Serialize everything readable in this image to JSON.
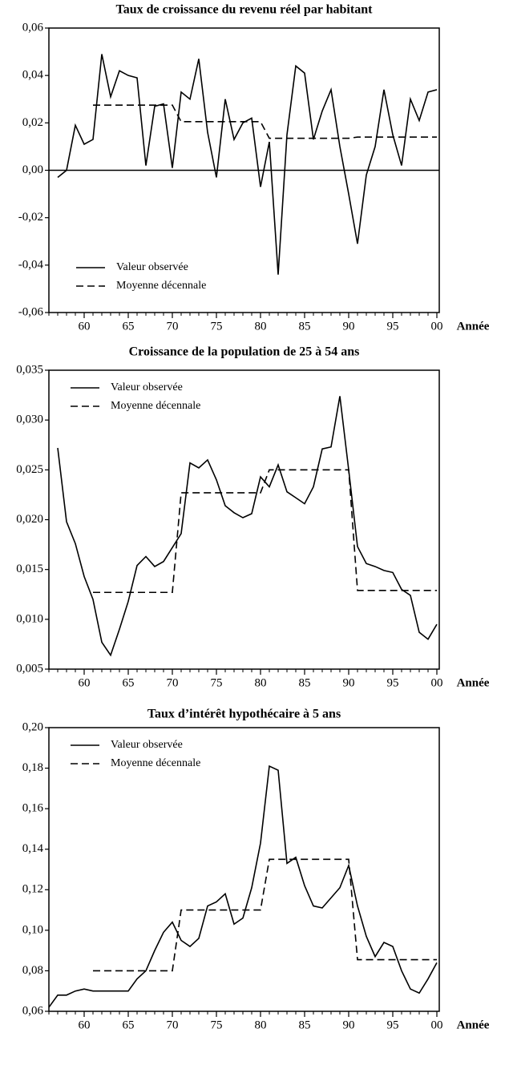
{
  "chart_data": [
    {
      "type": "line",
      "title": "Taux de croissance du revenu réel par habitant",
      "xlabel": "Année",
      "x": [
        1957,
        1958,
        1959,
        1960,
        1961,
        1962,
        1963,
        1964,
        1965,
        1966,
        1967,
        1968,
        1969,
        1970,
        1971,
        1972,
        1973,
        1974,
        1975,
        1976,
        1977,
        1978,
        1979,
        1980,
        1981,
        1982,
        1983,
        1984,
        1985,
        1986,
        1987,
        1988,
        1989,
        1990,
        1991,
        1992,
        1993,
        1994,
        1995,
        1996,
        1997,
        1998,
        1999,
        2000
      ],
      "series": [
        {
          "name": "Valeur observée",
          "color": "#000000",
          "dashed": false,
          "values": [
            -0.003,
            0.0,
            0.019,
            0.011,
            0.013,
            0.049,
            0.031,
            0.042,
            0.04,
            0.039,
            0.002,
            0.027,
            0.028,
            0.001,
            0.033,
            0.03,
            0.047,
            0.016,
            -0.003,
            0.03,
            0.013,
            0.02,
            0.022,
            -0.007,
            0.012,
            -0.044,
            0.015,
            0.044,
            0.041,
            0.013,
            0.025,
            0.034,
            0.01,
            -0.01,
            -0.031,
            -0.002,
            0.01,
            0.034,
            0.015,
            0.002,
            0.03,
            0.021,
            0.033,
            0.034
          ]
        },
        {
          "name": "Moyenne décennale",
          "color": "#000000",
          "dashed": true,
          "values": [
            null,
            null,
            null,
            null,
            0.0275,
            0.0275,
            0.0275,
            0.0275,
            0.0275,
            0.0275,
            0.0275,
            0.0275,
            0.0275,
            0.0275,
            0.0205,
            0.0205,
            0.0205,
            0.0205,
            0.0205,
            0.0205,
            0.0205,
            0.0205,
            0.0205,
            0.0205,
            0.0135,
            0.0135,
            0.0135,
            0.0135,
            0.0135,
            0.0135,
            0.0135,
            0.0135,
            0.0135,
            0.0135,
            0.014,
            0.014,
            0.014,
            0.014,
            0.014,
            0.014,
            0.014,
            0.014,
            0.014,
            0.014
          ]
        }
      ],
      "xlim": [
        1956,
        2000
      ],
      "xticks": [
        {
          "value": 1960,
          "label": "60"
        },
        {
          "value": 1965,
          "label": "65"
        },
        {
          "value": 1970,
          "label": "70"
        },
        {
          "value": 1975,
          "label": "75"
        },
        {
          "value": 1980,
          "label": "80"
        },
        {
          "value": 1985,
          "label": "85"
        },
        {
          "value": 1990,
          "label": "90"
        },
        {
          "value": 1995,
          "label": "95"
        },
        {
          "value": 2000,
          "label": "00"
        }
      ],
      "ylim": [
        -0.06,
        0.06
      ],
      "yticks": [
        {
          "value": -0.06,
          "label": "-0,06"
        },
        {
          "value": -0.04,
          "label": "-0,04"
        },
        {
          "value": -0.02,
          "label": "-0,02"
        },
        {
          "value": 0,
          "label": "0,00"
        },
        {
          "value": 0.02,
          "label": "0,02"
        },
        {
          "value": 0.04,
          "label": "0,04"
        },
        {
          "value": 0.06,
          "label": "0,06"
        }
      ],
      "zero_line": true,
      "legend": "lower left"
    },
    {
      "type": "line",
      "title": "Croissance de la population de 25 à 54 ans",
      "xlabel": "Année",
      "x": [
        1957,
        1958,
        1959,
        1960,
        1961,
        1962,
        1963,
        1964,
        1965,
        1966,
        1967,
        1968,
        1969,
        1970,
        1971,
        1972,
        1973,
        1974,
        1975,
        1976,
        1977,
        1978,
        1979,
        1980,
        1981,
        1982,
        1983,
        1984,
        1985,
        1986,
        1987,
        1988,
        1989,
        1990,
        1991,
        1992,
        1993,
        1994,
        1995,
        1996,
        1997,
        1998,
        1999,
        2000
      ],
      "series": [
        {
          "name": "Valeur observée",
          "color": "#000000",
          "dashed": false,
          "values": [
            0.0272,
            0.0198,
            0.0176,
            0.0143,
            0.012,
            0.0077,
            0.0064,
            0.009,
            0.0118,
            0.0154,
            0.0163,
            0.0153,
            0.0158,
            0.0172,
            0.0186,
            0.0257,
            0.0252,
            0.026,
            0.024,
            0.0214,
            0.0207,
            0.0202,
            0.0206,
            0.0243,
            0.0233,
            0.0255,
            0.0228,
            0.0222,
            0.0216,
            0.0233,
            0.0271,
            0.0273,
            0.0324,
            0.025,
            0.0173,
            0.0156,
            0.0153,
            0.0149,
            0.0147,
            0.013,
            0.0124,
            0.0087,
            0.008,
            0.0095
          ]
        },
        {
          "name": "Moyenne décennale",
          "color": "#000000",
          "dashed": true,
          "values": [
            null,
            null,
            null,
            null,
            0.0127,
            0.0127,
            0.0127,
            0.0127,
            0.0127,
            0.0127,
            0.0127,
            0.0127,
            0.0127,
            0.0127,
            0.0227,
            0.0227,
            0.0227,
            0.0227,
            0.0227,
            0.0227,
            0.0227,
            0.0227,
            0.0227,
            0.0227,
            0.025,
            0.025,
            0.025,
            0.025,
            0.025,
            0.025,
            0.025,
            0.025,
            0.025,
            0.025,
            0.0129,
            0.0129,
            0.0129,
            0.0129,
            0.0129,
            0.0129,
            0.0129,
            0.0129,
            0.0129,
            0.0129
          ]
        }
      ],
      "xlim": [
        1956,
        2000
      ],
      "xticks": [
        {
          "value": 1960,
          "label": "60"
        },
        {
          "value": 1965,
          "label": "65"
        },
        {
          "value": 1970,
          "label": "70"
        },
        {
          "value": 1975,
          "label": "75"
        },
        {
          "value": 1980,
          "label": "80"
        },
        {
          "value": 1985,
          "label": "85"
        },
        {
          "value": 1990,
          "label": "90"
        },
        {
          "value": 1995,
          "label": "95"
        },
        {
          "value": 2000,
          "label": "00"
        }
      ],
      "ylim": [
        0.005,
        0.035
      ],
      "yticks": [
        {
          "value": 0.005,
          "label": "0,005"
        },
        {
          "value": 0.01,
          "label": "0,010"
        },
        {
          "value": 0.015,
          "label": "0,015"
        },
        {
          "value": 0.02,
          "label": "0,020"
        },
        {
          "value": 0.025,
          "label": "0,025"
        },
        {
          "value": 0.03,
          "label": "0,030"
        },
        {
          "value": 0.035,
          "label": "0,035"
        }
      ],
      "zero_line": false,
      "legend": "upper left"
    },
    {
      "type": "line",
      "title": "Taux d’intérêt hypothécaire à 5 ans",
      "xlabel": "Année",
      "x": [
        1956,
        1957,
        1958,
        1959,
        1960,
        1961,
        1962,
        1963,
        1964,
        1965,
        1966,
        1967,
        1968,
        1969,
        1970,
        1971,
        1972,
        1973,
        1974,
        1975,
        1976,
        1977,
        1978,
        1979,
        1980,
        1981,
        1982,
        1983,
        1984,
        1985,
        1986,
        1987,
        1988,
        1989,
        1990,
        1991,
        1992,
        1993,
        1994,
        1995,
        1996,
        1997,
        1998,
        1999,
        2000
      ],
      "series": [
        {
          "name": "Valeur observée",
          "color": "#000000",
          "dashed": false,
          "values": [
            0.062,
            0.068,
            0.068,
            0.07,
            0.071,
            0.07,
            0.07,
            0.07,
            0.07,
            0.07,
            0.076,
            0.08,
            0.09,
            0.099,
            0.104,
            0.095,
            0.092,
            0.096,
            0.112,
            0.114,
            0.118,
            0.103,
            0.106,
            0.121,
            0.143,
            0.181,
            0.179,
            0.133,
            0.136,
            0.122,
            0.112,
            0.111,
            0.116,
            0.121,
            0.132,
            0.112,
            0.097,
            0.087,
            0.094,
            0.092,
            0.08,
            0.071,
            0.069,
            0.076,
            0.084
          ]
        },
        {
          "name": "Moyenne décennale",
          "color": "#000000",
          "dashed": true,
          "values": [
            null,
            null,
            null,
            null,
            null,
            0.08,
            0.08,
            0.08,
            0.08,
            0.08,
            0.08,
            0.08,
            0.08,
            0.08,
            0.08,
            0.11,
            0.11,
            0.11,
            0.11,
            0.11,
            0.11,
            0.11,
            0.11,
            0.11,
            0.11,
            0.135,
            0.135,
            0.135,
            0.135,
            0.135,
            0.135,
            0.135,
            0.135,
            0.135,
            0.135,
            0.0855,
            0.0855,
            0.0855,
            0.0855,
            0.0855,
            0.0855,
            0.0855,
            0.0855,
            0.0855,
            0.0855
          ]
        }
      ],
      "xlim": [
        1956,
        2000
      ],
      "xticks": [
        {
          "value": 1960,
          "label": "60"
        },
        {
          "value": 1965,
          "label": "65"
        },
        {
          "value": 1970,
          "label": "70"
        },
        {
          "value": 1975,
          "label": "75"
        },
        {
          "value": 1980,
          "label": "80"
        },
        {
          "value": 1985,
          "label": "85"
        },
        {
          "value": 1990,
          "label": "90"
        },
        {
          "value": 1995,
          "label": "95"
        },
        {
          "value": 2000,
          "label": "00"
        }
      ],
      "ylim": [
        0.06,
        0.2
      ],
      "yticks": [
        {
          "value": 0.06,
          "label": "0,06"
        },
        {
          "value": 0.08,
          "label": "0,08"
        },
        {
          "value": 0.1,
          "label": "0,10"
        },
        {
          "value": 0.12,
          "label": "0,12"
        },
        {
          "value": 0.14,
          "label": "0,14"
        },
        {
          "value": 0.16,
          "label": "0,16"
        },
        {
          "value": 0.18,
          "label": "0,18"
        },
        {
          "value": 0.2,
          "label": "0,20"
        }
      ],
      "zero_line": false,
      "legend": "upper left"
    }
  ]
}
